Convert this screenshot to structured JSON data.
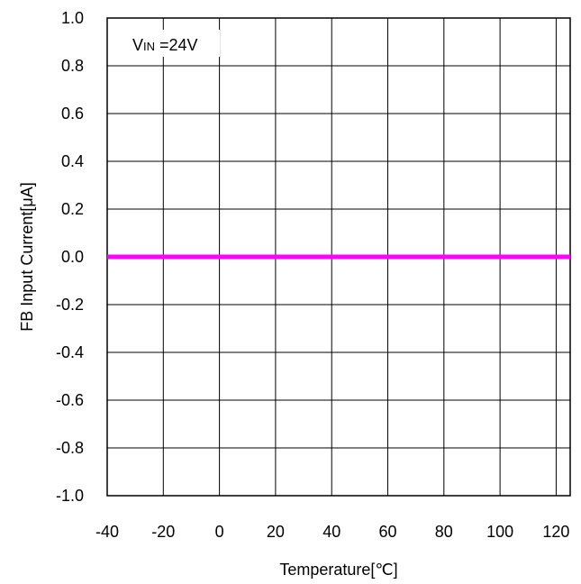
{
  "chart_data": {
    "type": "line",
    "xlabel": "Temperature[℃]",
    "ylabel": "FB Input Current[μA]",
    "xlim": [
      -40,
      125
    ],
    "ylim": [
      -1.0,
      1.0
    ],
    "x_ticks": [
      -40,
      -20,
      0,
      20,
      40,
      60,
      80,
      100,
      120
    ],
    "y_ticks": [
      1.0,
      0.8,
      0.6,
      0.4,
      0.2,
      0.0,
      -0.2,
      -0.4,
      -0.6,
      -0.8,
      -1.0
    ],
    "x_tick_labels": [
      "-40",
      "-20",
      "0",
      "20",
      "40",
      "60",
      "80",
      "100",
      "120"
    ],
    "y_tick_labels": [
      "1.0",
      "0.8",
      "0.6",
      "0.4",
      "0.2",
      "0.0",
      "-0.2",
      "-0.4",
      "-0.6",
      "-0.8",
      "-1.0"
    ],
    "grid": true,
    "annotation": {
      "prefix": "V",
      "subscript": "IN",
      "suffix": " =24V"
    },
    "series": [
      {
        "color": "#ff00ff",
        "x": [
          -40,
          125
        ],
        "y": [
          0.0,
          0.0
        ]
      }
    ]
  }
}
